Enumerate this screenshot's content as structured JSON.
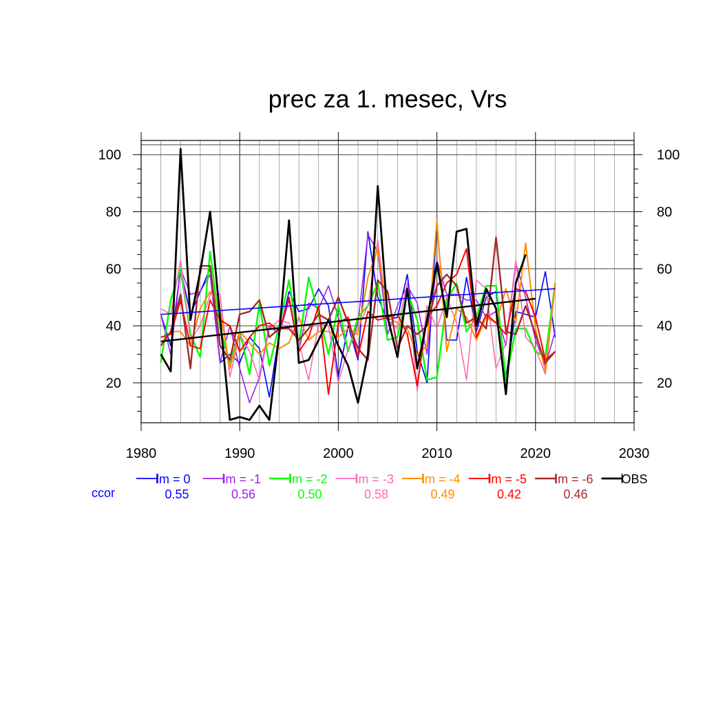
{
  "chart_data": {
    "type": "line",
    "title": "prec za 1. mesec, Vrs",
    "xlabel": "",
    "ylabel": "",
    "xlim": [
      1980,
      2030
    ],
    "ylim": [
      6,
      105
    ],
    "x_ticks": [
      "1980",
      "1990",
      "2000",
      "2010",
      "2020",
      "2030"
    ],
    "y_ticks": [
      "20",
      "40",
      "60",
      "80",
      "100"
    ],
    "grid": true,
    "legend_position": "bottom",
    "ccor_label": "ccor",
    "x": [
      1982,
      1983,
      1984,
      1985,
      1986,
      1987,
      1988,
      1989,
      1990,
      1991,
      1992,
      1993,
      1994,
      1995,
      1996,
      1997,
      1998,
      1999,
      2000,
      2001,
      2002,
      2003,
      2004,
      2005,
      2006,
      2007,
      2008,
      2009,
      2010,
      2011,
      2012,
      2013,
      2014,
      2015,
      2016,
      2017,
      2018,
      2019,
      2020,
      2021,
      2022
    ],
    "series": [
      {
        "name": "lm = 0",
        "color": "#0000ff",
        "width": 1.6,
        "ccor": "0.55",
        "trend": {
          "x": [
            1982,
            2022
          ],
          "y": [
            44,
            53
          ]
        },
        "values": [
          44,
          33,
          60,
          44,
          52,
          60,
          27,
          30,
          27,
          36,
          32,
          15,
          37,
          52,
          45,
          46,
          53,
          47,
          22,
          40,
          28,
          73,
          50,
          42,
          43,
          58,
          31,
          20,
          76,
          35,
          35,
          57,
          38,
          50,
          52,
          22,
          45,
          44,
          43,
          59,
          36
        ]
      },
      {
        "name": "lm = -1",
        "color": "#a020f0",
        "width": 1.6,
        "ccor": "0.56",
        "trend": null,
        "values": [
          44,
          30,
          60,
          51,
          52,
          58,
          27,
          40,
          25,
          13,
          22,
          40,
          37,
          49,
          31,
          48,
          46,
          54,
          43,
          31,
          41,
          72,
          66,
          37,
          47,
          54,
          48,
          30,
          63,
          51,
          51,
          49,
          49,
          43,
          45,
          33,
          62,
          50,
          35,
          26,
          38
        ]
      },
      {
        "name": "lm = -2",
        "color": "#00ff00",
        "width": 2.4,
        "ccor": "0.50",
        "trend": null,
        "values": [
          27,
          49,
          60,
          37,
          29,
          66,
          39,
          27,
          38,
          23,
          48,
          26,
          40,
          56,
          33,
          57,
          44,
          30,
          47,
          31,
          43,
          47,
          55,
          35,
          36,
          52,
          42,
          21,
          22,
          49,
          55,
          38,
          43,
          54,
          54,
          21,
          39,
          39,
          31,
          29,
          55
        ]
      },
      {
        "name": "lm = -3",
        "color": "#ff69b4",
        "width": 1.6,
        "ccor": "0.58",
        "trend": null,
        "values": [
          46,
          44,
          63,
          35,
          40,
          51,
          51,
          22,
          37,
          31,
          21,
          39,
          42,
          41,
          34,
          21,
          41,
          40,
          20,
          32,
          39,
          47,
          70,
          42,
          39,
          55,
          17,
          47,
          39,
          50,
          41,
          21,
          56,
          53,
          25,
          34,
          63,
          36,
          32,
          23,
          54
        ]
      },
      {
        "name": "lm = -4",
        "color": "#ff8c00",
        "width": 2.0,
        "ccor": "0.49",
        "trend": null,
        "values": [
          33,
          38,
          38,
          33,
          46,
          52,
          46,
          25,
          38,
          34,
          30,
          34,
          32,
          34,
          43,
          35,
          38,
          38,
          36,
          39,
          37,
          57,
          67,
          43,
          41,
          39,
          30,
          33,
          77,
          31,
          46,
          43,
          35,
          43,
          41,
          53,
          41,
          69,
          39,
          24,
          55
        ]
      },
      {
        "name": "lm = -5",
        "color": "#ff0000",
        "width": 2.0,
        "ccor": "0.42",
        "trend": null,
        "values": [
          36,
          37,
          49,
          33,
          32,
          49,
          42,
          40,
          31,
          36,
          40,
          41,
          38,
          50,
          31,
          36,
          47,
          16,
          41,
          43,
          29,
          45,
          42,
          43,
          44,
          37,
          19,
          43,
          47,
          55,
          58,
          67,
          36,
          44,
          41,
          37,
          53,
          52,
          43,
          28,
          31
        ]
      },
      {
        "name": "lm = -6",
        "color": "#a52a2a",
        "width": 2.4,
        "ccor": "0.46",
        "trend": null,
        "values": [
          33,
          38,
          51,
          25,
          61,
          61,
          33,
          28,
          44,
          45,
          49,
          36,
          39,
          39,
          35,
          39,
          44,
          42,
          50,
          41,
          32,
          28,
          56,
          52,
          32,
          40,
          37,
          40,
          54,
          58,
          54,
          41,
          43,
          39,
          71,
          38,
          37,
          47,
          37,
          27,
          31
        ]
      },
      {
        "name": "OBS",
        "color": "#000000",
        "width": 2.8,
        "ccor": "",
        "trend": {
          "x": [
            1982,
            2020
          ],
          "y": [
            34.5,
            49.5
          ]
        },
        "values": [
          30,
          24,
          102,
          42,
          59,
          80,
          43,
          7,
          8,
          7,
          12,
          7,
          37,
          77,
          27,
          28,
          35,
          42,
          33,
          26,
          13,
          30,
          89,
          43,
          29,
          53,
          25,
          42,
          62,
          43,
          73,
          74,
          40,
          53,
          46,
          16,
          55,
          65,
          null,
          null,
          null
        ]
      }
    ]
  }
}
